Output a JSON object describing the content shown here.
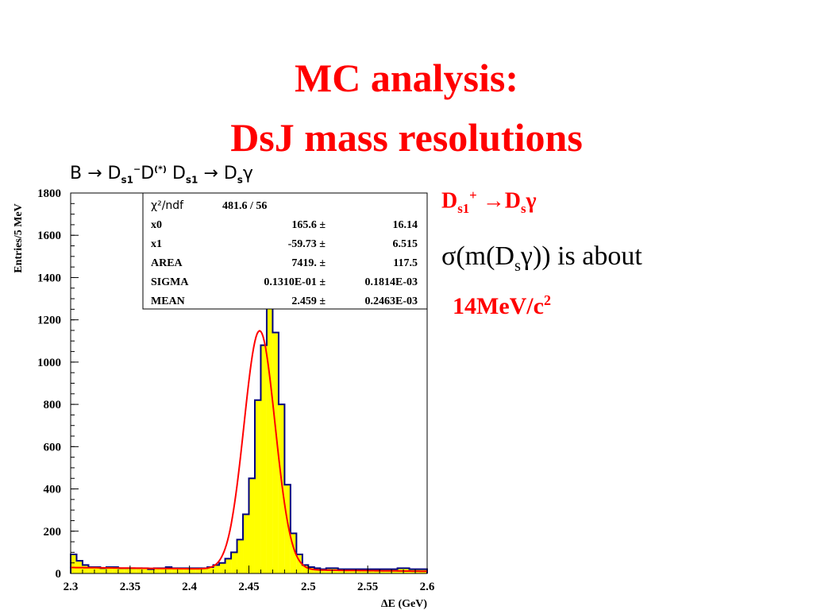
{
  "slide": {
    "title_line1": "MC analysis:",
    "title_line2": "DsJ mass resolutions",
    "right_text": {
      "line1": {
        "a": "D",
        "sub": "s1",
        "sup": "+",
        "arrow": "→",
        "b": "D",
        "sub2": "s",
        "gamma": "γ"
      },
      "line2": {
        "a": "σ(m(D",
        "sub": "s",
        "b": "γ)) is about"
      },
      "line3": {
        "a": "14MeV/c",
        "sup": "2"
      }
    },
    "colors": {
      "title": "#ff0000",
      "histogram_fill": "#ffff00",
      "histogram_line": "#000080",
      "fit": "#ff0000"
    }
  },
  "chart_data": {
    "type": "bar",
    "heading": {
      "a": "B ",
      "arrow": "→",
      "b": " D",
      "sub1": "s1",
      "c": "",
      "sup1": "−",
      "d": "D",
      "sup2": "(*)",
      "e": " D",
      "sub2": "s1",
      "f": " ",
      "arrow2": "→",
      "g": " D",
      "sub3": "s",
      "h": "γ"
    },
    "xlabel": "ΔE (GeV)",
    "ylabel": "Entries/5 MeV",
    "xlim": [
      2.3,
      2.6
    ],
    "ylim": [
      0,
      1800
    ],
    "x_ticks": [
      "2.3",
      "2.35",
      "2.4",
      "2.45",
      "2.5",
      "2.55",
      "2.6"
    ],
    "y_ticks": [
      "0",
      "200",
      "400",
      "600",
      "800",
      "1000",
      "1200",
      "1400",
      "1600",
      "1800"
    ],
    "bin_width": 0.005,
    "bin_edges_start": 2.3,
    "values": [
      90,
      60,
      40,
      30,
      30,
      25,
      30,
      30,
      25,
      25,
      25,
      25,
      25,
      20,
      25,
      25,
      30,
      25,
      25,
      25,
      25,
      25,
      25,
      30,
      40,
      50,
      70,
      100,
      160,
      280,
      450,
      820,
      1080,
      1260,
      1140,
      800,
      420,
      190,
      90,
      40,
      30,
      25,
      20,
      25,
      25,
      20,
      20,
      20,
      20,
      20,
      20,
      20,
      20,
      20,
      20,
      25,
      25,
      20,
      20,
      20
    ],
    "fit": {
      "x0": 165.6,
      "x1": -59.73,
      "area": 7419,
      "sigma": 0.0131,
      "mean": 2.459
    },
    "stats_box": [
      {
        "label": "χ²/ndf",
        "value": "481.6   /   56",
        "error": ""
      },
      {
        "label": "x0",
        "value": "165.6 ±",
        "error": "16.14"
      },
      {
        "label": "x1",
        "value": "-59.73 ±",
        "error": "6.515"
      },
      {
        "label": "AREA",
        "value": "7419. ±",
        "error": "117.5"
      },
      {
        "label": "SIGMA",
        "value": "0.1310E-01 ±",
        "error": "0.1814E-03"
      },
      {
        "label": "MEAN",
        "value": "2.459 ±",
        "error": "0.2463E-03"
      }
    ]
  }
}
